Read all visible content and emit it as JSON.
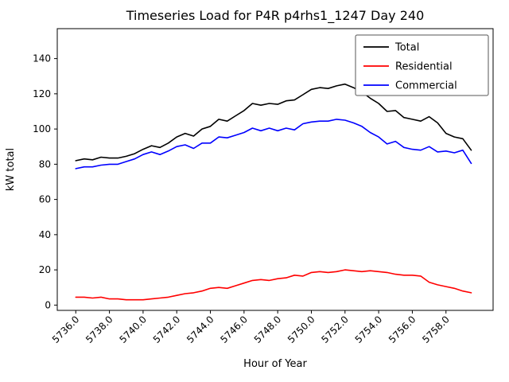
{
  "colors": {
    "background": "#ffffff",
    "axis": "#000000",
    "total_line": "#000000",
    "residential_line": "#ff0000",
    "commercial_line": "#0000ff"
  },
  "chart_data": {
    "type": "line",
    "title": "Timeseries Load for P4R p4rhs1_1247  Day 240",
    "xlabel": "Hour of Year",
    "ylabel": "kW total",
    "xlim": [
      5734.9,
      5760.8
    ],
    "ylim": [
      -3,
      157
    ],
    "grid": false,
    "legend_position": "upper right",
    "xticks": [
      5736,
      5738,
      5740,
      5742,
      5744,
      5746,
      5748,
      5750,
      5752,
      5754,
      5756,
      5758
    ],
    "xtick_labels": [
      "5736.0",
      "5738.0",
      "5740.0",
      "5742.0",
      "5744.0",
      "5746.0",
      "5748.0",
      "5750.0",
      "5752.0",
      "5754.0",
      "5756.0",
      "5758.0"
    ],
    "yticks": [
      0,
      20,
      40,
      60,
      80,
      100,
      120,
      140
    ],
    "ytick_labels": [
      "0",
      "20",
      "40",
      "60",
      "80",
      "100",
      "120",
      "140"
    ],
    "x": [
      5736.0,
      5736.5,
      5737.0,
      5737.5,
      5738.0,
      5738.5,
      5739.0,
      5739.5,
      5740.0,
      5740.5,
      5741.0,
      5741.5,
      5742.0,
      5742.5,
      5743.0,
      5743.5,
      5744.0,
      5744.5,
      5745.0,
      5745.5,
      5746.0,
      5746.5,
      5747.0,
      5747.5,
      5748.0,
      5748.5,
      5749.0,
      5749.5,
      5750.0,
      5750.5,
      5751.0,
      5751.5,
      5752.0,
      5752.5,
      5753.0,
      5753.5,
      5754.0,
      5754.5,
      5755.0,
      5755.5,
      5756.0,
      5756.5,
      5757.0,
      5757.5,
      5758.0,
      5758.5,
      5759.0,
      5759.5
    ],
    "series": [
      {
        "name": "Total",
        "color": "#000000",
        "values": [
          82,
          83,
          82.5,
          84,
          83.5,
          83.5,
          84.5,
          86,
          88.5,
          90.5,
          89.5,
          92,
          95.5,
          97.5,
          96,
          100,
          101.5,
          105.5,
          104.5,
          107.5,
          110.5,
          114.5,
          113.5,
          114.5,
          114,
          116,
          116.5,
          119.5,
          122.5,
          123.5,
          123,
          124.5,
          125.5,
          123.5,
          121,
          117.5,
          114.5,
          110,
          110.5,
          106.5,
          105.5,
          104.5,
          107,
          103.5,
          97.5,
          95.5,
          94.5,
          88
        ]
      },
      {
        "name": "Residential",
        "color": "#ff0000",
        "values": [
          4.5,
          4.5,
          4,
          4.5,
          3.5,
          3.5,
          3,
          3,
          3,
          3.5,
          4,
          4.5,
          5.5,
          6.5,
          7,
          8,
          9.5,
          10,
          9.5,
          11,
          12.5,
          14,
          14.5,
          14,
          15,
          15.5,
          17,
          16.5,
          18.5,
          19,
          18.5,
          19,
          20,
          19.5,
          19,
          19.5,
          19,
          18.5,
          17.5,
          17,
          17,
          16.5,
          13,
          11.5,
          10.5,
          9.5,
          8,
          7
        ]
      },
      {
        "name": "Commercial",
        "color": "#0000ff",
        "values": [
          77.5,
          78.5,
          78.5,
          79.5,
          80,
          80,
          81.5,
          83,
          85.5,
          87,
          85.5,
          87.5,
          90,
          91,
          89,
          92,
          92,
          95.5,
          95,
          96.5,
          98,
          100.5,
          99,
          100.5,
          99,
          100.5,
          99.5,
          103,
          104,
          104.5,
          104.5,
          105.5,
          105,
          103.5,
          101.5,
          98,
          95.5,
          91.5,
          93,
          89.5,
          88.5,
          88,
          90,
          87,
          87.5,
          86.5,
          88,
          80.5
        ]
      }
    ]
  }
}
